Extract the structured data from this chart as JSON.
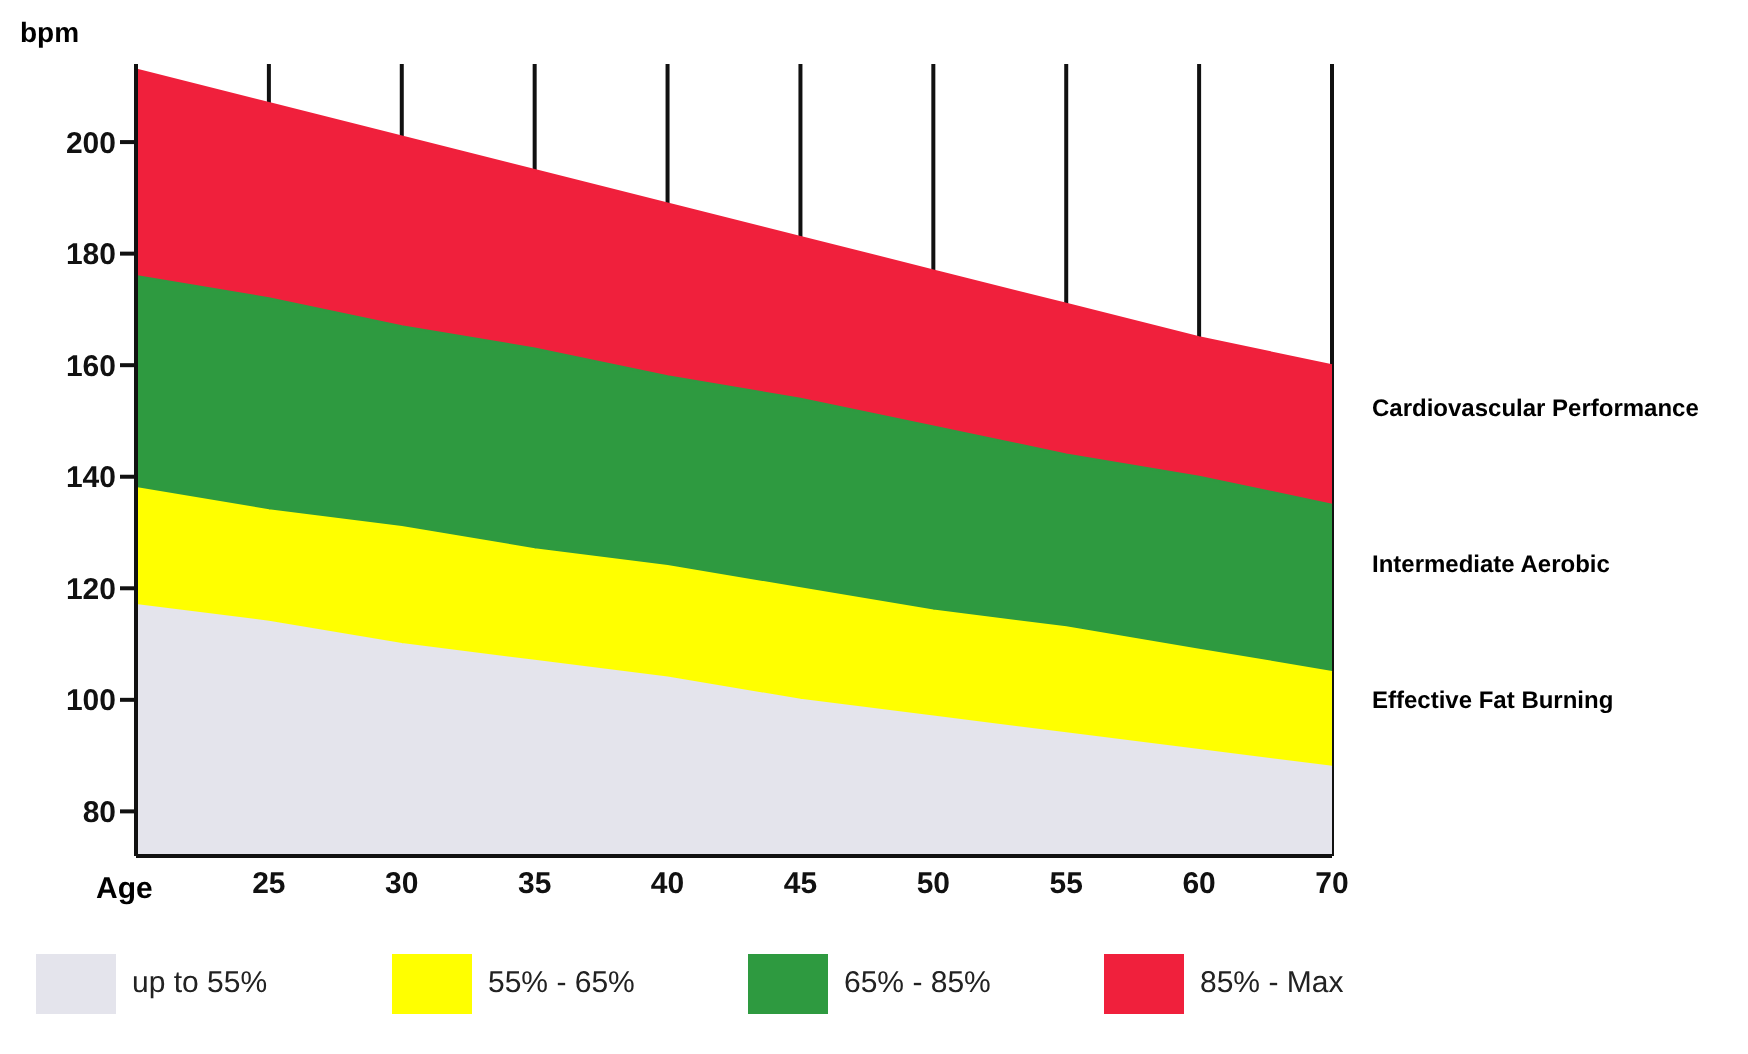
{
  "chart_data": {
    "type": "area",
    "ylabel": "bpm",
    "xlabel": "Age",
    "categories": [
      null,
      "25",
      "30",
      "35",
      "40",
      "45",
      "50",
      "55",
      "60",
      "70"
    ],
    "series": [
      {
        "name": "up to 55%",
        "color": "#e4e4ec",
        "values": [
          117,
          114,
          110,
          107,
          104,
          100,
          97,
          94,
          91,
          88
        ]
      },
      {
        "name": "55% - 65%",
        "color": "#ffff00",
        "values": [
          138,
          134,
          131,
          127,
          124,
          120,
          116,
          113,
          109,
          105
        ]
      },
      {
        "name": "65% - 85%",
        "color": "#2e9a40",
        "values": [
          176,
          172,
          167,
          163,
          158,
          154,
          149,
          144,
          140,
          135
        ]
      },
      {
        "name": "85% - Max",
        "color": "#f0203c",
        "values": [
          213,
          207,
          201,
          195,
          189,
          183,
          177,
          171,
          165,
          160
        ]
      }
    ],
    "ylim": [
      72,
      214
    ],
    "yticks": [
      80,
      100,
      120,
      140,
      160,
      180,
      200
    ],
    "grid": "x",
    "legend": "bottom",
    "annotations": [
      "Cardiovascular Performance",
      "Intermediate Aerobic",
      "Effective Fat Burning"
    ]
  }
}
